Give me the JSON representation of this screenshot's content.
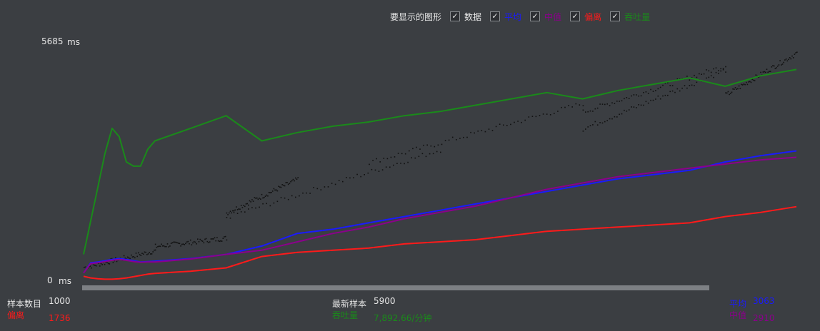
{
  "legend": {
    "title": "要显示的图形",
    "items": [
      {
        "label": "数据",
        "color": "#e6e6e6",
        "checked": true,
        "check_glyph": "✓"
      },
      {
        "label": "平均",
        "color": "#1a1aff",
        "checked": true,
        "check_glyph": "✓"
      },
      {
        "label": "中值",
        "color": "#8b008b",
        "checked": true,
        "check_glyph": "✓"
      },
      {
        "label": "偏离",
        "color": "#ff1a1a",
        "checked": true,
        "check_glyph": "✓"
      },
      {
        "label": "吞吐量",
        "color": "#1a8a1a",
        "checked": true,
        "check_glyph": "✓"
      }
    ]
  },
  "axis": {
    "y_max_label": "5685",
    "y_min_label": "0",
    "unit": "ms"
  },
  "stats": {
    "samples_label": "样本数目",
    "samples_value": "1000",
    "deviation_label": "偏离",
    "deviation_value": "1736",
    "latest_label": "最新样本",
    "latest_value": "5900",
    "throughput_label": "吞吐量",
    "throughput_value": "7,892.66/分钟",
    "average_label": "平均",
    "average_value": "3063",
    "median_label": "中值",
    "median_value": "2910"
  },
  "chart_data": {
    "type": "line",
    "x": [
      0,
      10,
      20,
      30,
      40,
      50,
      60,
      70,
      80,
      90,
      100,
      150,
      200,
      250,
      300,
      350,
      400,
      450,
      500,
      550,
      600,
      650,
      700,
      750,
      800,
      850,
      900,
      950,
      1000
    ],
    "ylim": [
      0,
      5685
    ],
    "series": [
      {
        "name": "平均",
        "color": "#1a1aff",
        "values": [
          160,
          400,
          420,
          450,
          480,
          500,
          480,
          450,
          420,
          430,
          440,
          500,
          600,
          800,
          1100,
          1200,
          1350,
          1500,
          1650,
          1800,
          1950,
          2100,
          2250,
          2400,
          2500,
          2600,
          2800,
          2950,
          3063
        ]
      },
      {
        "name": "中值",
        "color": "#8b008b",
        "values": [
          160,
          380,
          400,
          430,
          460,
          480,
          460,
          430,
          410,
          420,
          420,
          490,
          600,
          700,
          900,
          1100,
          1250,
          1450,
          1600,
          1750,
          1950,
          2150,
          2300,
          2450,
          2550,
          2650,
          2750,
          2850,
          2910
        ]
      },
      {
        "name": "偏离",
        "color": "#ff1a1a",
        "values": [
          80,
          40,
          20,
          10,
          10,
          20,
          40,
          70,
          100,
          130,
          150,
          200,
          280,
          550,
          650,
          700,
          750,
          850,
          900,
          950,
          1050,
          1150,
          1200,
          1250,
          1300,
          1350,
          1500,
          1600,
          1736
        ]
      },
      {
        "name": "吞吐量",
        "color": "#1a8a1a",
        "values": [
          600,
          1400,
          2200,
          3000,
          3600,
          3400,
          2800,
          2700,
          2700,
          3100,
          3300,
          3600,
          3900,
          3300,
          3500,
          3650,
          3750,
          3900,
          4000,
          4150,
          4300,
          4450,
          4300,
          4500,
          4650,
          4800,
          4600,
          4850,
          5000
        ]
      }
    ],
    "scatter": {
      "name": "数据",
      "color": "#111111",
      "clusters": [
        {
          "x": [
            0,
            100
          ],
          "y": [
            300,
            700
          ]
        },
        {
          "x": [
            100,
            200
          ],
          "y": [
            800,
            1000
          ]
        },
        {
          "x": [
            200,
            300
          ],
          "y": [
            1600,
            2400
          ]
        },
        {
          "x": [
            200,
            500
          ],
          "y": [
            1500,
            3100
          ]
        },
        {
          "x": [
            400,
            700
          ],
          "y": [
            2800,
            4200
          ]
        },
        {
          "x": [
            700,
            900
          ],
          "y": [
            4000,
            5100
          ]
        },
        {
          "x": [
            700,
            900
          ],
          "y": [
            3600,
            5000
          ]
        },
        {
          "x": [
            900,
            1000
          ],
          "y": [
            4400,
            5400
          ]
        }
      ]
    }
  }
}
